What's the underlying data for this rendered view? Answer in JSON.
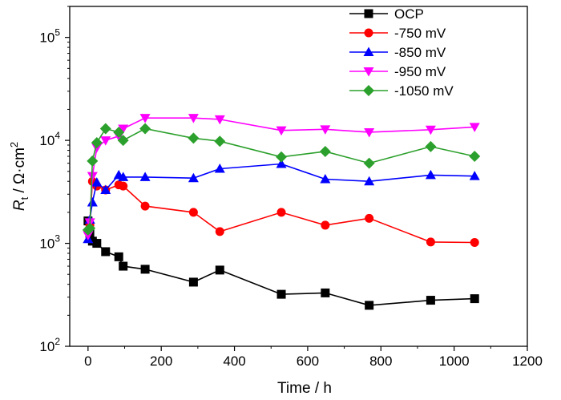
{
  "chart_data": {
    "type": "line",
    "xlabel": "Time / h",
    "ylabel": {
      "symbol": "R",
      "subscript": "t",
      "unit": " / Ω·cm",
      "superscript": "2"
    },
    "xlim": [
      -50,
      1200
    ],
    "xticks": [
      0,
      200,
      400,
      600,
      800,
      1000,
      1200
    ],
    "xtick_labels": [
      "0",
      "200",
      "400",
      "600",
      "800",
      "1000",
      "1200"
    ],
    "yscale": "log",
    "ylim": [
      100,
      200000
    ],
    "yticks": [
      100,
      1000,
      10000,
      100000
    ],
    "ytick_labels": [
      {
        "base": "10",
        "exp": "2"
      },
      {
        "base": "10",
        "exp": "3"
      },
      {
        "base": "10",
        "exp": "4"
      },
      {
        "base": "10",
        "exp": "5"
      }
    ],
    "grid": false,
    "legend_position": "top-right",
    "series": [
      {
        "name": "OCP",
        "color": "#000000",
        "marker": "square",
        "x": [
          0,
          5,
          12,
          24,
          48,
          84,
          96,
          156,
          288,
          360,
          528,
          648,
          768,
          936,
          1056
        ],
        "y": [
          1650,
          1250,
          1050,
          1000,
          830,
          740,
          600,
          560,
          420,
          550,
          320,
          330,
          250,
          280,
          290
        ]
      },
      {
        "name": "-750 mV",
        "color": "#ff0000",
        "marker": "circle",
        "x": [
          0,
          5,
          12,
          24,
          48,
          84,
          96,
          156,
          288,
          360,
          528,
          648,
          768,
          936,
          1056
        ],
        "y": [
          1300,
          1500,
          4000,
          3600,
          3300,
          3700,
          3600,
          2300,
          2000,
          1300,
          2000,
          1500,
          1750,
          1030,
          1020
        ]
      },
      {
        "name": "-850 mV",
        "color": "#0000ff",
        "marker": "triangle-up",
        "x": [
          0,
          5,
          12,
          24,
          48,
          84,
          96,
          156,
          288,
          360,
          528,
          648,
          768,
          936,
          1056
        ],
        "y": [
          1100,
          1700,
          2500,
          3900,
          3300,
          4600,
          4400,
          4400,
          4300,
          5300,
          5900,
          4200,
          4000,
          4600,
          4500
        ]
      },
      {
        "name": "-950 mV",
        "color": "#ff00ff",
        "marker": "triangle-down",
        "x": [
          0,
          5,
          12,
          24,
          48,
          84,
          96,
          156,
          288,
          360,
          528,
          648,
          768,
          936,
          1056
        ],
        "y": [
          1200,
          1600,
          4500,
          8500,
          10000,
          11000,
          13000,
          16500,
          16500,
          16000,
          12500,
          12800,
          12000,
          12700,
          13500
        ]
      },
      {
        "name": "-1050 mV",
        "color": "#2ca02c",
        "marker": "diamond",
        "x": [
          0,
          5,
          12,
          24,
          48,
          84,
          96,
          156,
          288,
          360,
          528,
          648,
          768,
          936,
          1056
        ],
        "y": [
          1350,
          1400,
          6300,
          9500,
          13000,
          12000,
          10000,
          13000,
          10500,
          9800,
          6900,
          7800,
          6000,
          8700,
          7000
        ]
      }
    ]
  }
}
